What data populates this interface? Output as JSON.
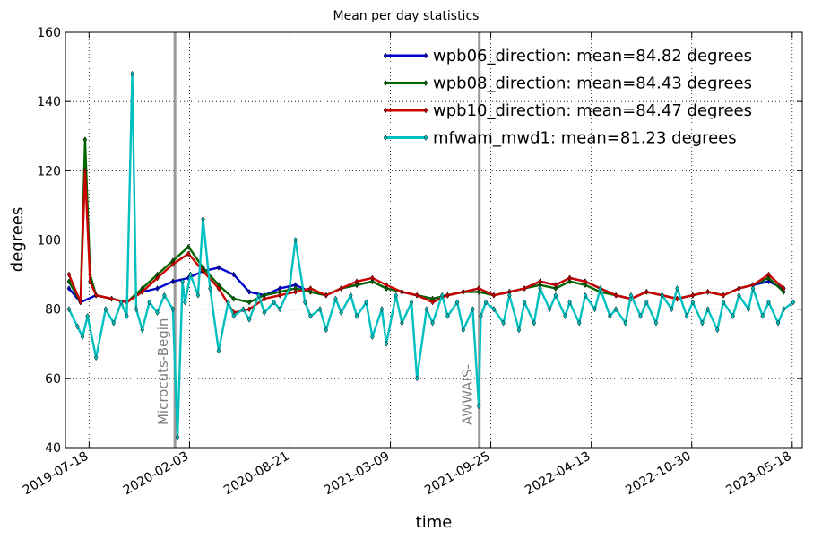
{
  "chart_data": {
    "type": "line",
    "title": "Mean per day statistics",
    "xlabel": "time",
    "ylabel": "degrees",
    "ylim": [
      40,
      160
    ],
    "xlim": [
      "2019-06-01",
      "2023-06-07"
    ],
    "grid": true,
    "legend_position": "top-right",
    "x_ticks": [
      "2019-07-18",
      "2020-02-03",
      "2020-08-21",
      "2021-03-09",
      "2021-09-25",
      "2022-04-13",
      "2022-10-30",
      "2023-05-18"
    ],
    "y_ticks": [
      40,
      60,
      80,
      100,
      120,
      140,
      160
    ],
    "events": [
      {
        "label": "Microcuts-Begin",
        "date": "2020-01-05",
        "color": "#999999"
      },
      {
        "label": "AWWAIS-",
        "date": "2021-09-02",
        "color": "#999999"
      }
    ],
    "series": [
      {
        "name": "wpb06_direction: mean=84.82 degrees",
        "color": "#0000cc",
        "x": [
          "2019-06-08",
          "2019-07-01",
          "2019-08-01",
          "2019-09-01",
          "2019-10-01",
          "2019-11-01",
          "2019-12-01",
          "2020-01-01",
          "2020-02-01",
          "2020-03-01",
          "2020-04-01",
          "2020-05-01",
          "2020-06-01",
          "2020-07-01",
          "2020-08-01",
          "2020-09-01",
          "2020-10-01",
          "2020-11-01",
          "2020-12-01",
          "2021-01-01",
          "2021-02-01",
          "2021-03-01",
          "2021-04-01",
          "2021-05-01",
          "2021-06-01",
          "2021-07-01",
          "2021-08-01",
          "2021-09-01",
          "2021-10-01",
          "2021-11-01",
          "2021-12-01",
          "2022-01-01",
          "2022-02-01",
          "2022-03-01",
          "2022-04-01",
          "2022-05-01",
          "2022-06-01",
          "2022-07-01",
          "2022-08-01",
          "2022-09-01",
          "2022-10-01",
          "2022-11-01",
          "2022-12-01",
          "2023-01-01",
          "2023-02-01",
          "2023-03-01",
          "2023-04-01",
          "2023-05-01"
        ],
        "y": [
          86,
          82,
          84,
          83,
          82,
          85,
          86,
          88,
          89,
          91,
          92,
          90,
          85,
          84,
          86,
          87,
          85,
          84,
          86,
          87,
          88,
          86,
          85,
          84,
          83,
          84,
          85,
          86,
          84,
          85,
          86,
          88,
          87,
          89,
          88,
          86,
          84,
          83,
          85,
          84,
          83,
          84,
          85,
          84,
          86,
          87,
          88,
          86
        ]
      },
      {
        "name": "wpb08_direction: mean=84.43 degrees",
        "color": "#006600",
        "x": [
          "2019-06-08",
          "2019-07-01",
          "2019-07-10",
          "2019-07-20",
          "2019-08-01",
          "2019-09-01",
          "2019-10-01",
          "2019-11-01",
          "2019-12-01",
          "2020-01-01",
          "2020-02-01",
          "2020-03-01",
          "2020-04-01",
          "2020-05-01",
          "2020-06-01",
          "2020-07-01",
          "2020-08-01",
          "2020-09-01",
          "2020-10-01",
          "2020-11-01",
          "2020-12-01",
          "2021-01-01",
          "2021-02-01",
          "2021-03-01",
          "2021-04-01",
          "2021-05-01",
          "2021-06-01",
          "2021-07-01",
          "2021-08-01",
          "2021-09-01",
          "2021-10-01",
          "2021-11-01",
          "2021-12-01",
          "2022-01-01",
          "2022-02-01",
          "2022-03-01",
          "2022-04-01",
          "2022-05-01",
          "2022-06-01",
          "2022-07-01",
          "2022-08-01",
          "2022-09-01",
          "2022-10-01",
          "2022-11-01",
          "2022-12-01",
          "2023-01-01",
          "2023-02-01",
          "2023-03-01",
          "2023-04-01",
          "2023-05-01"
        ],
        "y": [
          88,
          82,
          129,
          90,
          84,
          83,
          82,
          86,
          90,
          94,
          98,
          92,
          87,
          83,
          82,
          84,
          85,
          86,
          85,
          84,
          86,
          87,
          88,
          86,
          85,
          84,
          83,
          84,
          85,
          85,
          84,
          85,
          86,
          87,
          86,
          88,
          87,
          85,
          84,
          83,
          85,
          84,
          83,
          84,
          85,
          84,
          86,
          87,
          89,
          85
        ]
      },
      {
        "name": "wpb10_direction: mean=84.47 degrees",
        "color": "#cc0000",
        "x": [
          "2019-06-08",
          "2019-07-01",
          "2019-07-10",
          "2019-07-20",
          "2019-08-01",
          "2019-09-01",
          "2019-10-01",
          "2019-11-01",
          "2019-12-01",
          "2020-01-01",
          "2020-02-01",
          "2020-03-01",
          "2020-04-01",
          "2020-05-01",
          "2020-06-01",
          "2020-07-01",
          "2020-08-01",
          "2020-09-01",
          "2020-10-01",
          "2020-11-01",
          "2020-12-01",
          "2021-01-01",
          "2021-02-01",
          "2021-03-01",
          "2021-04-01",
          "2021-05-01",
          "2021-06-01",
          "2021-07-01",
          "2021-08-01",
          "2021-09-01",
          "2021-10-01",
          "2021-11-01",
          "2021-12-01",
          "2022-01-01",
          "2022-02-01",
          "2022-03-01",
          "2022-04-01",
          "2022-05-01",
          "2022-06-01",
          "2022-07-01",
          "2022-08-01",
          "2022-09-01",
          "2022-10-01",
          "2022-11-01",
          "2022-12-01",
          "2023-01-01",
          "2023-02-01",
          "2023-03-01",
          "2023-04-01",
          "2023-05-01"
        ],
        "y": [
          90,
          82,
          120,
          88,
          84,
          83,
          82,
          85,
          89,
          93,
          96,
          91,
          86,
          79,
          80,
          83,
          84,
          85,
          86,
          84,
          86,
          88,
          89,
          87,
          85,
          84,
          82,
          84,
          85,
          86,
          84,
          85,
          86,
          88,
          87,
          89,
          88,
          86,
          84,
          83,
          85,
          84,
          83,
          84,
          85,
          84,
          86,
          87,
          90,
          86
        ]
      },
      {
        "name": "mfwam_mwd1: mean=81.23 degrees",
        "color": "#00bfbf",
        "x": [
          "2019-06-08",
          "2019-06-25",
          "2019-07-05",
          "2019-07-15",
          "2019-08-01",
          "2019-08-20",
          "2019-09-05",
          "2019-09-20",
          "2019-10-01",
          "2019-10-12",
          "2019-10-20",
          "2019-11-01",
          "2019-11-15",
          "2019-12-01",
          "2019-12-15",
          "2020-01-01",
          "2020-01-10",
          "2020-01-20",
          "2020-01-25",
          "2020-02-05",
          "2020-02-20",
          "2020-03-01",
          "2020-03-15",
          "2020-04-01",
          "2020-04-20",
          "2020-05-01",
          "2020-05-20",
          "2020-06-01",
          "2020-06-20",
          "2020-07-01",
          "2020-07-20",
          "2020-08-01",
          "2020-08-20",
          "2020-09-01",
          "2020-09-20",
          "2020-10-01",
          "2020-10-20",
          "2020-11-01",
          "2020-11-20",
          "2020-12-01",
          "2020-12-20",
          "2021-01-01",
          "2021-01-20",
          "2021-02-01",
          "2021-02-20",
          "2021-03-01",
          "2021-03-20",
          "2021-04-01",
          "2021-04-20",
          "2021-05-01",
          "2021-05-20",
          "2021-06-01",
          "2021-06-20",
          "2021-07-01",
          "2021-07-20",
          "2021-08-01",
          "2021-08-20",
          "2021-09-01",
          "2021-09-05",
          "2021-09-15",
          "2021-10-01",
          "2021-10-20",
          "2021-11-01",
          "2021-11-20",
          "2021-12-01",
          "2021-12-20",
          "2022-01-01",
          "2022-01-20",
          "2022-02-01",
          "2022-02-20",
          "2022-03-01",
          "2022-03-20",
          "2022-04-01",
          "2022-04-20",
          "2022-05-01",
          "2022-05-20",
          "2022-06-01",
          "2022-06-20",
          "2022-07-01",
          "2022-07-20",
          "2022-08-01",
          "2022-08-20",
          "2022-09-01",
          "2022-09-20",
          "2022-10-01",
          "2022-10-20",
          "2022-11-01",
          "2022-11-20",
          "2022-12-01",
          "2022-12-20",
          "2023-01-01",
          "2023-01-20",
          "2023-02-01",
          "2023-02-20",
          "2023-03-01",
          "2023-03-20",
          "2023-04-01",
          "2023-04-20",
          "2023-05-01",
          "2023-05-20"
        ],
        "y": [
          80,
          75,
          72,
          78,
          66,
          80,
          76,
          82,
          78,
          148,
          80,
          74,
          82,
          79,
          84,
          80,
          43,
          88,
          82,
          90,
          84,
          106,
          86,
          68,
          82,
          78,
          80,
          77,
          84,
          79,
          82,
          80,
          86,
          100,
          82,
          78,
          80,
          74,
          83,
          79,
          84,
          78,
          82,
          72,
          80,
          70,
          84,
          76,
          82,
          60,
          80,
          76,
          84,
          78,
          82,
          74,
          80,
          52,
          78,
          82,
          80,
          76,
          84,
          74,
          82,
          76,
          86,
          80,
          84,
          78,
          82,
          76,
          84,
          80,
          86,
          78,
          80,
          76,
          84,
          78,
          82,
          76,
          84,
          80,
          86,
          78,
          82,
          76,
          80,
          74,
          82,
          78,
          84,
          80,
          86,
          78,
          82,
          76,
          80,
          82
        ]
      }
    ]
  }
}
